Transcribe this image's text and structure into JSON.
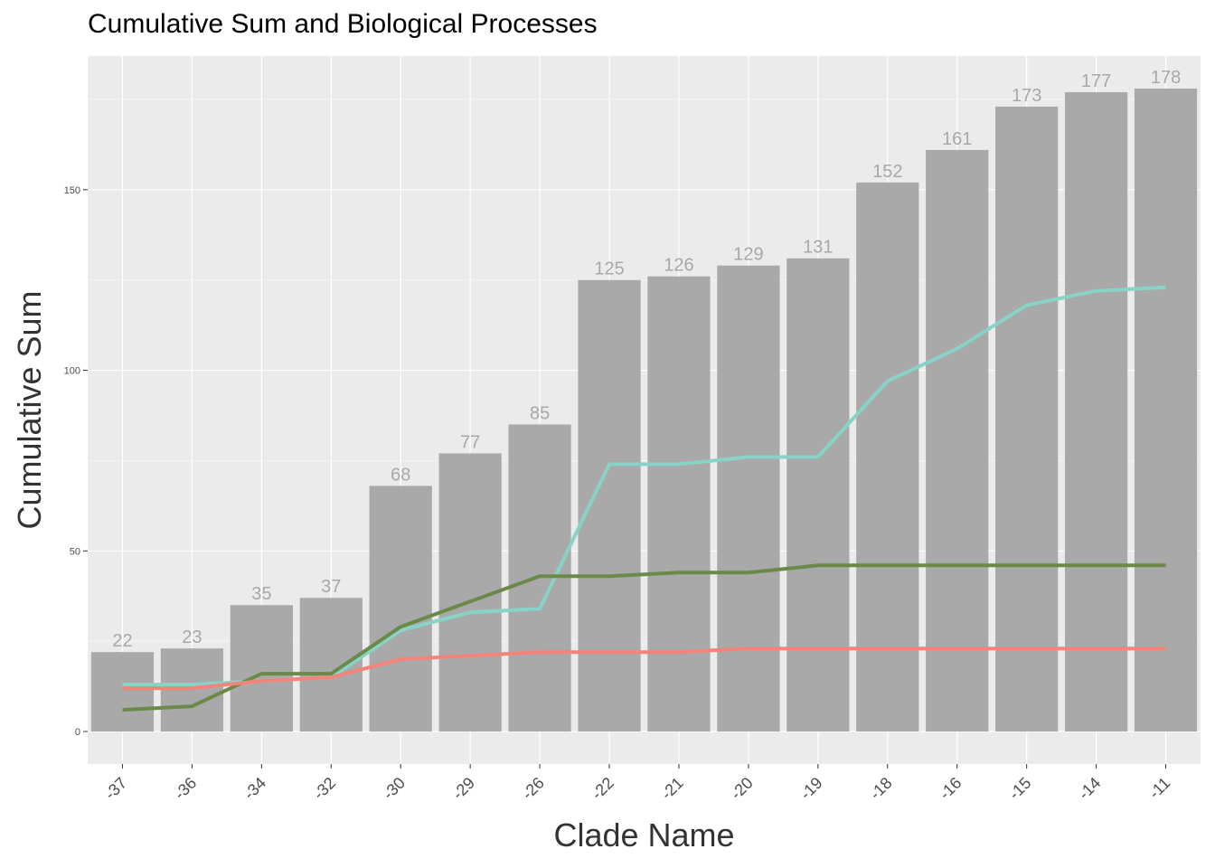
{
  "chart_data": {
    "type": "bar",
    "title": "Cumulative Sum and Biological Processes",
    "xlabel": "Clade Name",
    "ylabel": "Cumulative Sum",
    "categories": [
      "-37",
      "-36",
      "-34",
      "-32",
      "-30",
      "-29",
      "-26",
      "-22",
      "-21",
      "-20",
      "-19",
      "-18",
      "-16",
      "-15",
      "-14",
      "-11"
    ],
    "values": [
      22,
      23,
      35,
      37,
      68,
      77,
      85,
      125,
      126,
      129,
      131,
      152,
      161,
      173,
      177,
      178
    ],
    "bar_color": "#a9a9a9",
    "data_label_color": "#a8a8a8",
    "panel_background": "#ebebeb",
    "grid": true,
    "ylim": [
      -9,
      187
    ],
    "y_ticks": [
      0,
      50,
      100,
      150
    ],
    "lines": [
      {
        "color": "#88d3c7",
        "values": [
          13,
          13,
          14,
          15,
          28,
          33,
          34,
          74,
          74,
          76,
          76,
          97,
          106,
          118,
          122,
          123
        ]
      },
      {
        "color": "#6b8a4a",
        "values": [
          6,
          7,
          16,
          16,
          29,
          36,
          43,
          43,
          44,
          44,
          46,
          46,
          46,
          46,
          46,
          46
        ]
      },
      {
        "color": "#f4847a",
        "values": [
          12,
          12,
          14,
          15,
          20,
          21,
          22,
          22,
          22,
          23,
          23,
          23,
          23,
          23,
          23,
          23
        ]
      }
    ]
  }
}
